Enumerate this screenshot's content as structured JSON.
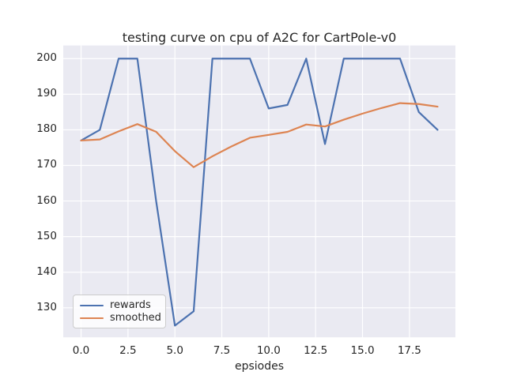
{
  "chart_data": {
    "type": "line",
    "title": "testing curve on cpu of A2C for CartPole-v0",
    "xlabel": "epsiodes",
    "ylabel": "",
    "x": [
      0,
      1,
      2,
      3,
      4,
      5,
      6,
      7,
      8,
      9,
      10,
      11,
      12,
      13,
      14,
      15,
      16,
      17,
      18,
      19
    ],
    "series": [
      {
        "name": "rewards",
        "color": "#4c72b0",
        "values": [
          177,
          180,
          200,
          200,
          160,
          125,
          129,
          200,
          200,
          200,
          186,
          187,
          200,
          176,
          200,
          200,
          200,
          200,
          185,
          180
        ]
      },
      {
        "name": "smoothed",
        "color": "#dd8452",
        "values": [
          177.0,
          177.3,
          179.57,
          181.61,
          179.45,
          174.01,
          169.51,
          172.56,
          175.3,
          177.77,
          178.59,
          179.43,
          181.49,
          180.94,
          182.85,
          184.56,
          186.11,
          187.5,
          187.25,
          186.52
        ]
      }
    ],
    "xlim": [
      -0.95,
      19.95
    ],
    "ylim": [
      121.7,
      203.7
    ],
    "xticks": {
      "values": [
        0,
        2.5,
        5,
        7.5,
        10,
        12.5,
        15,
        17.5
      ],
      "labels": [
        "0.0",
        "2.5",
        "5.0",
        "7.5",
        "10.0",
        "12.5",
        "15.0",
        "17.5"
      ]
    },
    "yticks": {
      "values": [
        130,
        140,
        150,
        160,
        170,
        180,
        190,
        200
      ],
      "labels": [
        "130",
        "140",
        "150",
        "160",
        "170",
        "180",
        "190",
        "200"
      ]
    },
    "grid": true,
    "legend": {
      "position": "lower left"
    }
  },
  "style": {
    "figure_bg": "#ffffff",
    "plot_bg": "#eaeaf2",
    "grid_color": "#ffffff",
    "text_color": "#262626",
    "legend_edge": "#cccccc"
  }
}
